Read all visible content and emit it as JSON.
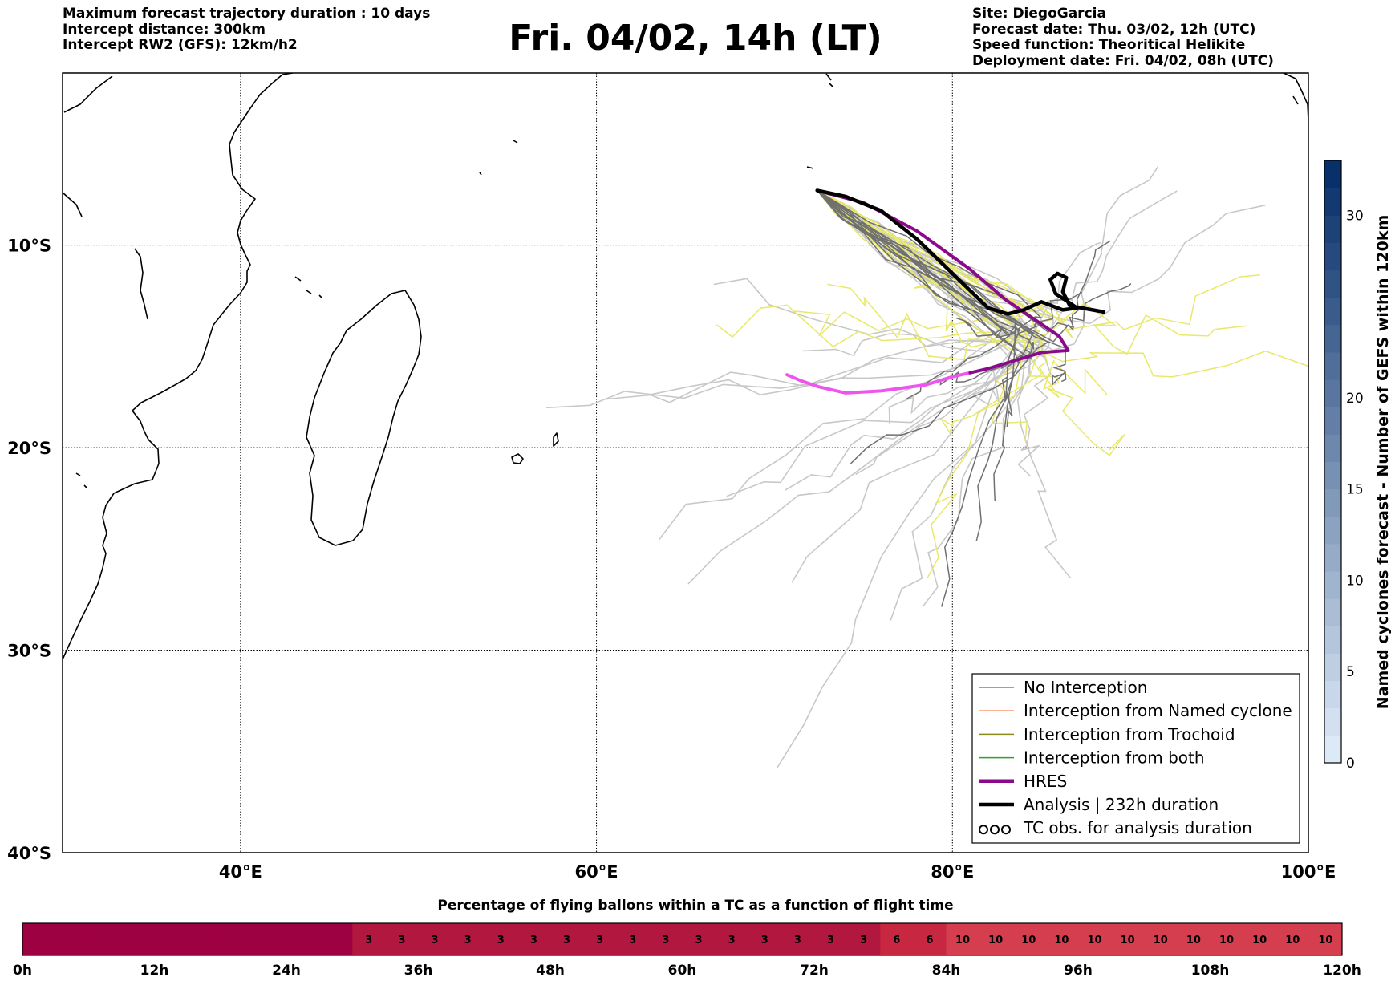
{
  "header": {
    "left_lines": [
      "Maximum forecast trajectory duration : 10 days",
      "Intercept distance: 300km",
      "Intercept RW2 (GFS):  12km/h2"
    ],
    "title": "Fri. 04/02, 14h (LT)",
    "right_lines": [
      "Site: DiegoGarcia",
      "Forecast date: Thu. 03/02, 12h (UTC)",
      "Speed function: Theoritical Helikite",
      "Deployment date: Fri. 04/02, 08h (UTC)"
    ]
  },
  "chart_data": [
    {
      "type": "line",
      "subtype": "trajectory map",
      "xaxis": {
        "range": [
          30,
          100
        ],
        "ticks": [
          40,
          60,
          80,
          100
        ],
        "tick_labels": [
          "40°E",
          "60°E",
          "80°E",
          "100°E"
        ]
      },
      "yaxis": {
        "range": [
          -40,
          -1.5
        ],
        "ticks": [
          -10,
          -20,
          -30,
          -40
        ],
        "tick_labels": [
          "10°S",
          "20°S",
          "30°S",
          "40°S"
        ]
      },
      "grid": true,
      "legend_position": "bottom-right",
      "legend": [
        {
          "label": "No Interception",
          "color": "#808080",
          "style": "line"
        },
        {
          "label": "Interception from Named cyclone",
          "color": "#ff6a2a",
          "style": "line"
        },
        {
          "label": "Interception from Trochoid",
          "color": "#8b8b1a",
          "style": "line"
        },
        {
          "label": "Interception from both",
          "color": "#2ca02c",
          "style": "line"
        },
        {
          "label": "HRES",
          "color": "#8b0a8b",
          "style": "thick-line"
        },
        {
          "label": "Analysis | 232h duration",
          "color": "#000000",
          "style": "thick-line"
        },
        {
          "label": "TC obs. for analysis duration",
          "color": "#000000",
          "style": "cyclone-symbol"
        }
      ],
      "colorbar": {
        "label": "Named cyclones forecast - Number of GEFS within 120km",
        "range": [
          0,
          33
        ],
        "ticks": [
          0,
          5,
          10,
          15,
          20,
          30
        ],
        "color_low": "#dce9f6",
        "color_high": "#08306b"
      },
      "series": [
        {
          "role": "analysis",
          "color": "#000000",
          "points": [
            [
              72.4,
              -7.3
            ],
            [
              74,
              -7.6
            ],
            [
              76,
              -8.3
            ],
            [
              78,
              -9.7
            ],
            [
              80,
              -11.4
            ],
            [
              82,
              -13.1
            ],
            [
              83.1,
              -13.4
            ],
            [
              84,
              -13.2
            ],
            [
              85,
              -12.8
            ],
            [
              86.2,
              -13.2
            ],
            [
              87,
              -13.1
            ],
            [
              86.5,
              -12.8
            ],
            [
              85.8,
              -12.4
            ],
            [
              85.5,
              -11.7
            ],
            [
              85.9,
              -11.4
            ],
            [
              86.4,
              -11.6
            ],
            [
              86.2,
              -12.3
            ],
            [
              86.6,
              -13.0
            ],
            [
              88.5,
              -13.3
            ]
          ]
        },
        {
          "role": "hres",
          "color": "#8b0a8b",
          "points": [
            [
              72.4,
              -7.3
            ],
            [
              75,
              -7.9
            ],
            [
              78,
              -9.3
            ],
            [
              81,
              -11.2
            ],
            [
              83,
              -12.7
            ],
            [
              84.5,
              -13.6
            ],
            [
              86,
              -14.5
            ],
            [
              86.5,
              -15.2
            ],
            [
              85,
              -15.3
            ],
            [
              83.5,
              -15.7
            ],
            [
              82,
              -16.1
            ],
            [
              81,
              -16.3
            ]
          ]
        },
        {
          "role": "hres-continuation",
          "color": "#ee55ee",
          "points": [
            [
              81,
              -16.3
            ],
            [
              80,
              -16.5
            ],
            [
              78.5,
              -16.9
            ],
            [
              76,
              -17.2
            ],
            [
              74,
              -17.3
            ],
            [
              72.5,
              -17.0
            ],
            [
              71.5,
              -16.7
            ],
            [
              70.7,
              -16.4
            ]
          ]
        }
      ]
    },
    {
      "type": "bar",
      "subtype": "horizontal colour strip",
      "title": "Percentage of flying ballons within a TC as a function of flight time",
      "x_tick_labels": [
        "0h",
        "12h",
        "24h",
        "36h",
        "48h",
        "60h",
        "72h",
        "84h",
        "96h",
        "108h",
        "120h"
      ],
      "categories_hours": [
        0,
        3,
        6,
        9,
        12,
        15,
        18,
        21,
        24,
        27,
        30,
        33,
        36,
        39,
        42,
        45,
        48,
        51,
        54,
        57,
        60,
        63,
        66,
        69,
        72,
        75,
        78,
        81,
        84,
        87,
        90,
        93,
        96,
        99,
        102,
        105,
        108,
        111,
        114,
        117
      ],
      "values": [
        0,
        0,
        0,
        0,
        0,
        0,
        0,
        0,
        0,
        0,
        3,
        3,
        3,
        3,
        3,
        3,
        3,
        3,
        3,
        3,
        3,
        3,
        3,
        3,
        3,
        3,
        6,
        6,
        10,
        10,
        10,
        10,
        10,
        10,
        10,
        10,
        10,
        10,
        10,
        10
      ],
      "show_value_labels_from_index": 10,
      "colors": {
        "0": "#9e0142",
        "3": "#b2173f",
        "6": "#c72741",
        "10": "#d53e4f"
      }
    }
  ]
}
